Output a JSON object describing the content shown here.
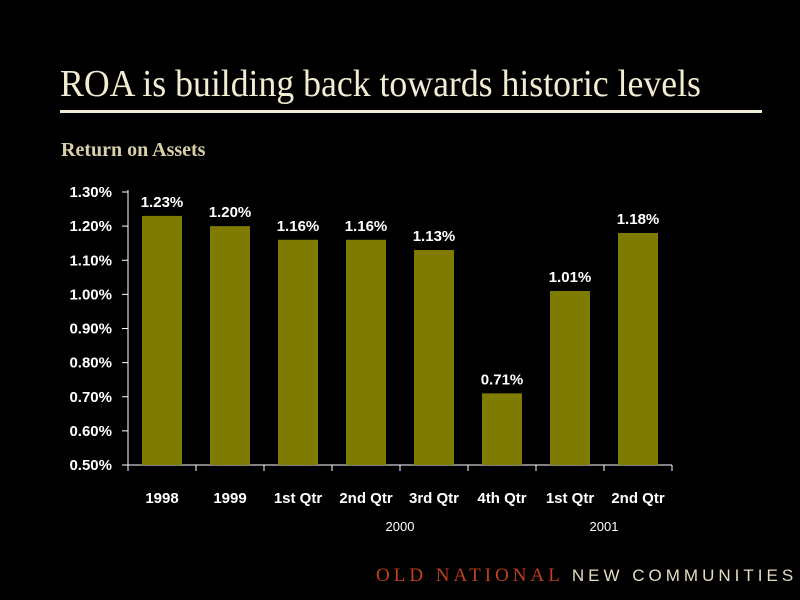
{
  "slide": {
    "title": "ROA is building back towards historic levels",
    "footer_brand": "OLD NATIONAL",
    "footer_tagline": "NEW COMMUNITIES"
  },
  "colors": {
    "background": "#000000",
    "bar": "#7f7a00",
    "axis": "#ffffff",
    "text": "#ffffff",
    "title": "#f2ecd2",
    "brand": "#c0401c"
  },
  "chart_data": {
    "type": "bar",
    "title": "Return on Assets",
    "xlabel": "",
    "ylabel": "",
    "categories": [
      "1998",
      "1999",
      "1st Qtr",
      "2nd Qtr",
      "3rd Qtr",
      "4th Qtr",
      "1st Qtr",
      "2nd Qtr"
    ],
    "category_groups": [
      {
        "label": "2000",
        "categories": [
          "1st Qtr",
          "2nd Qtr",
          "3rd Qtr",
          "4th Qtr"
        ]
      },
      {
        "label": "2001",
        "categories": [
          "1st Qtr",
          "2nd Qtr"
        ]
      }
    ],
    "values": [
      1.23,
      1.2,
      1.16,
      1.16,
      1.13,
      0.71,
      1.01,
      1.18
    ],
    "data_labels": [
      "1.23%",
      "1.20%",
      "1.16%",
      "1.16%",
      "1.13%",
      "0.71%",
      "1.01%",
      "1.18%"
    ],
    "ylim": [
      0.5,
      1.3
    ],
    "yticks": [
      0.5,
      0.6,
      0.7,
      0.8,
      0.9,
      1.0,
      1.1,
      1.2,
      1.3
    ],
    "ytick_labels": [
      "0.50%",
      "0.60%",
      "0.70%",
      "0.80%",
      "0.90%",
      "1.00%",
      "1.10%",
      "1.20%",
      "1.30%"
    ],
    "grid": false,
    "legend": "none"
  }
}
